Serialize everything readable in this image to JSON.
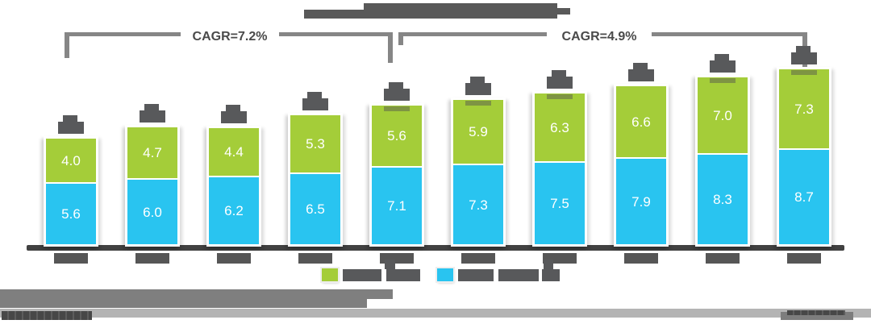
{
  "header": {
    "title_redacted": true,
    "title_note": "chart title obscured by gray redaction blocks"
  },
  "annotations": {
    "cagr_left": "CAGR=7.2%",
    "cagr_right": "CAGR=4.9%"
  },
  "legend": {
    "position": "bottom-center",
    "entries": [
      {
        "swatch_color": "#a4cd39",
        "label_redacted": true
      },
      {
        "swatch_color": "#29c4f0",
        "label_redacted": true
      }
    ]
  },
  "chart_data": {
    "type": "bar",
    "stacked": true,
    "orientation": "vertical",
    "num_bars": 10,
    "categories_redacted": true,
    "totals_redacted": true,
    "grid": false,
    "value_labels": "white, one decimal, centered in each segment",
    "series": [
      {
        "position": "top",
        "color": "#a4cd39",
        "name_redacted": true,
        "values": [
          4.0,
          4.7,
          4.4,
          5.3,
          5.6,
          5.9,
          6.3,
          6.6,
          7.0,
          7.3
        ]
      },
      {
        "position": "bottom",
        "color": "#29c4f0",
        "name_redacted": true,
        "values": [
          5.6,
          6.0,
          6.2,
          6.5,
          7.1,
          7.3,
          7.5,
          7.9,
          8.3,
          8.7
        ]
      }
    ],
    "cagr_bracket_left_covers": "bars 1-5",
    "cagr_bracket_right_covers": "bars 5-10"
  },
  "footer": {
    "note_redacted": true,
    "copyright_redacted": true,
    "watermark_redacted": true
  }
}
